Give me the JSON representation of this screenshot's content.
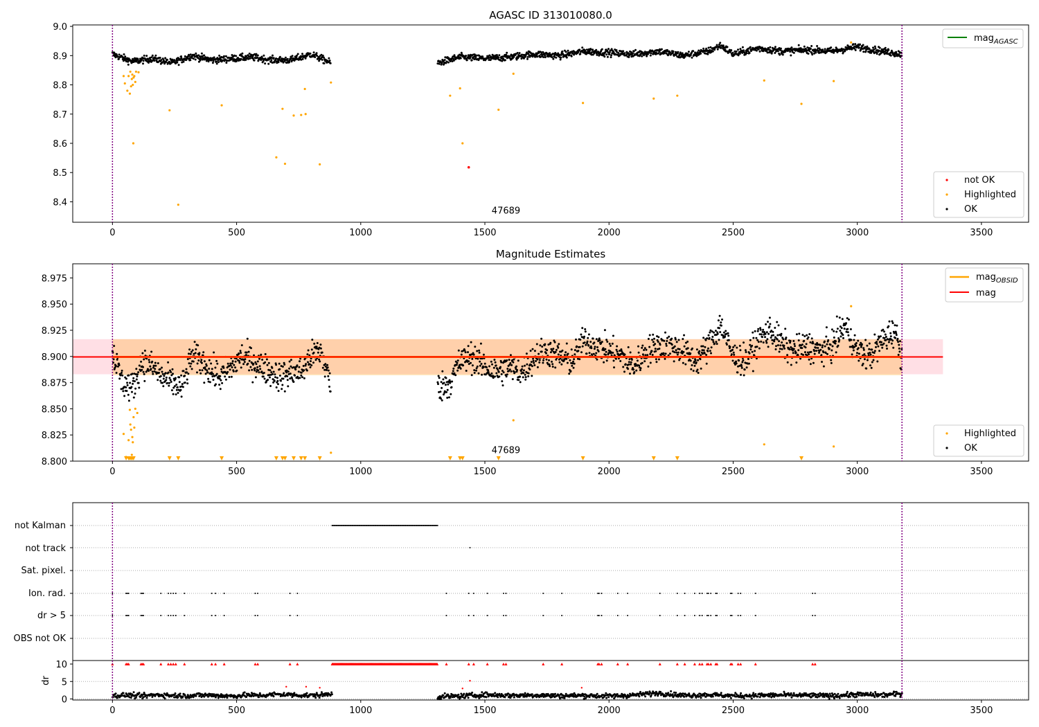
{
  "chart_data": [
    {
      "type": "scatter",
      "title": "AGASC ID 313010080.0",
      "xlim": [
        -160,
        3690
      ],
      "ylim": [
        8.33,
        9.005
      ],
      "xticks": [
        0,
        500,
        1000,
        1500,
        2000,
        2500,
        3000,
        3500
      ],
      "yticks": [
        8.4,
        8.5,
        8.6,
        8.7,
        8.8,
        8.9,
        9.0
      ],
      "ytick_labels": [
        "8.4",
        "8.5",
        "8.6",
        "8.7",
        "8.8",
        "8.9",
        "9.0"
      ],
      "vlines": [
        0,
        3180
      ],
      "annotation": {
        "text": "47689",
        "x": 1585,
        "y": 8.36
      },
      "legend_lines": [
        {
          "label": "mag",
          "subscript": "AGASC",
          "color": "#008000"
        }
      ],
      "legend_points": [
        {
          "label": "not OK",
          "color": "#ff0000"
        },
        {
          "label": "Highlighted",
          "color": "#ffa500"
        },
        {
          "label": "OK",
          "color": "#000000"
        }
      ],
      "ok_segments": [
        {
          "x": [
            0,
            80,
            160,
            240,
            320,
            400,
            480,
            560,
            640,
            720,
            800,
            880
          ],
          "y": [
            8.905,
            8.88,
            8.89,
            8.875,
            8.9,
            8.885,
            8.89,
            8.895,
            8.885,
            8.885,
            8.905,
            8.875
          ]
        },
        {
          "x": [
            1310,
            1400,
            1500,
            1600,
            1700,
            1800,
            1900,
            2000,
            2100,
            2200,
            2300,
            2400,
            2450,
            2500,
            2600,
            2700,
            2800,
            2900,
            3000,
            3100,
            3180
          ],
          "y": [
            8.875,
            8.895,
            8.89,
            8.895,
            8.905,
            8.9,
            8.915,
            8.91,
            8.905,
            8.915,
            8.9,
            8.915,
            8.935,
            8.905,
            8.925,
            8.915,
            8.92,
            8.915,
            8.93,
            8.915,
            8.905
          ]
        }
      ],
      "highlighted": [
        {
          "x": 45,
          "y": 8.83
        },
        {
          "x": 50,
          "y": 8.805
        },
        {
          "x": 60,
          "y": 8.78
        },
        {
          "x": 65,
          "y": 8.83
        },
        {
          "x": 70,
          "y": 8.77
        },
        {
          "x": 72,
          "y": 8.845
        },
        {
          "x": 75,
          "y": 8.795
        },
        {
          "x": 78,
          "y": 8.82
        },
        {
          "x": 80,
          "y": 8.835
        },
        {
          "x": 82,
          "y": 8.8
        },
        {
          "x": 84,
          "y": 8.6
        },
        {
          "x": 85,
          "y": 8.825
        },
        {
          "x": 88,
          "y": 8.83
        },
        {
          "x": 92,
          "y": 8.81
        },
        {
          "x": 95,
          "y": 8.845
        },
        {
          "x": 105,
          "y": 8.843
        },
        {
          "x": 230,
          "y": 8.713
        },
        {
          "x": 265,
          "y": 8.39
        },
        {
          "x": 440,
          "y": 8.73
        },
        {
          "x": 660,
          "y": 8.552
        },
        {
          "x": 685,
          "y": 8.718
        },
        {
          "x": 695,
          "y": 8.53
        },
        {
          "x": 730,
          "y": 8.695
        },
        {
          "x": 760,
          "y": 8.697
        },
        {
          "x": 775,
          "y": 8.786
        },
        {
          "x": 778,
          "y": 8.7
        },
        {
          "x": 835,
          "y": 8.528
        },
        {
          "x": 880,
          "y": 8.808
        },
        {
          "x": 1360,
          "y": 8.763
        },
        {
          "x": 1400,
          "y": 8.788
        },
        {
          "x": 1410,
          "y": 8.6
        },
        {
          "x": 1555,
          "y": 8.715
        },
        {
          "x": 1615,
          "y": 8.838
        },
        {
          "x": 1895,
          "y": 8.738
        },
        {
          "x": 2180,
          "y": 8.753
        },
        {
          "x": 2275,
          "y": 8.763
        },
        {
          "x": 2625,
          "y": 8.815
        },
        {
          "x": 2775,
          "y": 8.735
        },
        {
          "x": 2905,
          "y": 8.813
        },
        {
          "x": 2975,
          "y": 8.945
        }
      ],
      "not_ok": [
        {
          "x": 1435,
          "y": 8.518
        }
      ]
    },
    {
      "type": "scatter",
      "title": "Magnitude Estimates",
      "xlim": [
        -160,
        3690
      ],
      "ylim": [
        8.8,
        8.9885
      ],
      "xticks": [
        0,
        500,
        1000,
        1500,
        2000,
        2500,
        3000,
        3500
      ],
      "yticks": [
        8.8,
        8.825,
        8.85,
        8.875,
        8.9,
        8.925,
        8.95,
        8.975
      ],
      "ytick_labels": [
        "8.800",
        "8.825",
        "8.850",
        "8.875",
        "8.900",
        "8.925",
        "8.950",
        "8.975"
      ],
      "vlines": [
        0,
        3180
      ],
      "annotation": {
        "text": "47689",
        "x": 1585,
        "y": 8.8075
      },
      "mag": 8.8995,
      "mag_band": [
        8.883,
        8.9165
      ],
      "mag_band_x": [
        -160,
        3345
      ],
      "mag_obsid": 8.8995,
      "obsid_band": [
        8.882,
        8.9165
      ],
      "obsid_band_x": [
        0,
        3180
      ],
      "legend_lines": [
        {
          "label": "mag",
          "subscript": "OBSID",
          "color": "#ffa500"
        },
        {
          "label": "mag",
          "subscript": "",
          "color": "#ff0000"
        }
      ],
      "legend_points": [
        {
          "label": "Highlighted",
          "color": "#ffa500"
        },
        {
          "label": "OK",
          "color": "#000000"
        }
      ],
      "ok_segments": [
        {
          "x": [
            0,
            40,
            80,
            120,
            160,
            200,
            240,
            280,
            320,
            360,
            400,
            440,
            480,
            520,
            560,
            600,
            640,
            680,
            720,
            760,
            800,
            840,
            880
          ],
          "y": [
            8.905,
            8.875,
            8.87,
            8.895,
            8.89,
            8.88,
            8.875,
            8.87,
            8.9,
            8.895,
            8.885,
            8.88,
            8.89,
            8.9,
            8.895,
            8.89,
            8.885,
            8.88,
            8.885,
            8.885,
            8.9,
            8.905,
            8.872
          ]
        },
        {
          "x": [
            1310,
            1360,
            1400,
            1450,
            1500,
            1550,
            1600,
            1650,
            1700,
            1750,
            1800,
            1850,
            1900,
            1950,
            2000,
            2050,
            2100,
            2150,
            2200,
            2250,
            2300,
            2350,
            2400,
            2450,
            2500,
            2550,
            2600,
            2650,
            2700,
            2750,
            2800,
            2850,
            2900,
            2950,
            3000,
            3050,
            3100,
            3150,
            3180
          ],
          "y": [
            8.87,
            8.875,
            8.895,
            8.9,
            8.89,
            8.885,
            8.89,
            8.885,
            8.9,
            8.905,
            8.9,
            8.895,
            8.915,
            8.91,
            8.905,
            8.9,
            8.89,
            8.905,
            8.91,
            8.91,
            8.905,
            8.895,
            8.91,
            8.93,
            8.9,
            8.895,
            8.915,
            8.925,
            8.91,
            8.905,
            8.91,
            8.905,
            8.91,
            8.93,
            8.905,
            8.9,
            8.915,
            8.925,
            8.9
          ]
        }
      ],
      "highlighted": [
        {
          "x": 45,
          "y": 8.826
        },
        {
          "x": 55,
          "y": 8.804
        },
        {
          "x": 65,
          "y": 8.82
        },
        {
          "x": 70,
          "y": 8.849
        },
        {
          "x": 72,
          "y": 8.835
        },
        {
          "x": 75,
          "y": 8.83
        },
        {
          "x": 78,
          "y": 8.806
        },
        {
          "x": 80,
          "y": 8.823
        },
        {
          "x": 82,
          "y": 8.818
        },
        {
          "x": 85,
          "y": 8.842
        },
        {
          "x": 88,
          "y": 8.832
        },
        {
          "x": 92,
          "y": 8.85
        },
        {
          "x": 100,
          "y": 8.846
        },
        {
          "x": 880,
          "y": 8.808
        },
        {
          "x": 1615,
          "y": 8.839
        },
        {
          "x": 2625,
          "y": 8.816
        },
        {
          "x": 2905,
          "y": 8.814
        },
        {
          "x": 2975,
          "y": 8.948
        }
      ],
      "below_markers_x": [
        55,
        65,
        70,
        75,
        80,
        85,
        230,
        265,
        440,
        660,
        685,
        695,
        730,
        760,
        775,
        835,
        1360,
        1400,
        1410,
        1555,
        1895,
        2180,
        2275,
        2775
      ]
    },
    {
      "type": "scatter",
      "title": "",
      "xlim": [
        -160,
        3690
      ],
      "xticks": [
        0,
        500,
        1000,
        1500,
        2000,
        2500,
        3000,
        3500
      ],
      "vlines": [
        0,
        3180
      ],
      "flag_rows": [
        "not Kalman",
        "not track",
        "Sat. pixel.",
        "Ion. rad.",
        "dr > 5",
        "OBS not OK"
      ],
      "not_kalman_range": [
        885,
        1310
      ],
      "not_track_x": [
        1440
      ],
      "ion_rad_x": [
        0,
        55,
        60,
        65,
        115,
        120,
        125,
        195,
        225,
        235,
        245,
        255,
        290,
        400,
        415,
        450,
        575,
        585,
        715,
        745,
        1345,
        1435,
        1455,
        1510,
        1575,
        1585,
        1735,
        1810,
        1955,
        1960,
        1970,
        2035,
        2075,
        2205,
        2275,
        2305,
        2345,
        2365,
        2375,
        2395,
        2400,
        2410,
        2430,
        2435,
        2490,
        2495,
        2520,
        2530,
        2590,
        2820,
        2830
      ],
      "dr_gt5_x": [
        0,
        55,
        60,
        65,
        115,
        120,
        125,
        195,
        225,
        235,
        245,
        255,
        290,
        400,
        415,
        450,
        575,
        585,
        715,
        745,
        1345,
        1435,
        1455,
        1510,
        1575,
        1585,
        1735,
        1810,
        1955,
        1960,
        1970,
        2035,
        2075,
        2205,
        2275,
        2305,
        2345,
        2365,
        2375,
        2395,
        2400,
        2410,
        2430,
        2435,
        2490,
        2495,
        2520,
        2530,
        2590,
        2820,
        2830
      ],
      "dr_ylim": [
        -0.3,
        11
      ],
      "dr_yticks": [
        0,
        5,
        10
      ],
      "dr_ylabel": "dr",
      "dr_segments": [
        {
          "x": [
            0,
            60,
            120,
            180,
            240,
            300,
            360,
            420,
            480,
            540,
            600,
            660,
            720,
            780,
            840,
            885
          ],
          "y": [
            0.9,
            1.1,
            0.8,
            1.2,
            1.0,
            0.9,
            1.1,
            1.0,
            0.8,
            1.1,
            1.0,
            1.3,
            1.2,
            1.0,
            1.1,
            1.5
          ]
        },
        {
          "x": [
            1310,
            1400,
            1500,
            1600,
            1700,
            1800,
            1900,
            2000,
            2100,
            2200,
            2300,
            2400,
            2500,
            2600,
            2700,
            2800,
            2900,
            3000,
            3100,
            3180
          ],
          "y": [
            0.7,
            0.8,
            1.2,
            1.0,
            1.1,
            0.9,
            1.0,
            0.8,
            1.1,
            1.7,
            1.0,
            1.2,
            0.9,
            1.0,
            1.1,
            1.0,
            0.9,
            1.3,
            1.1,
            1.5
          ]
        }
      ],
      "dr_red_points": [
        {
          "x": 700,
          "y": 3.5
        },
        {
          "x": 780,
          "y": 3.5
        },
        {
          "x": 835,
          "y": 3.2
        },
        {
          "x": 1410,
          "y": 3.0
        },
        {
          "x": 1440,
          "y": 5.2
        },
        {
          "x": 1890,
          "y": 3.2
        }
      ],
      "dr_capped_x": [
        0,
        55,
        60,
        65,
        115,
        120,
        125,
        195,
        225,
        235,
        245,
        255,
        290,
        400,
        415,
        450,
        575,
        585,
        715,
        745,
        1345,
        1435,
        1455,
        1510,
        1575,
        1585,
        1735,
        1810,
        1955,
        1960,
        1970,
        2035,
        2075,
        2205,
        2275,
        2305,
        2345,
        2365,
        2375,
        2395,
        2400,
        2410,
        2430,
        2435,
        2490,
        2495,
        2520,
        2530,
        2590,
        2820,
        2830
      ],
      "dr_capped_range": [
        885,
        1310
      ]
    }
  ]
}
